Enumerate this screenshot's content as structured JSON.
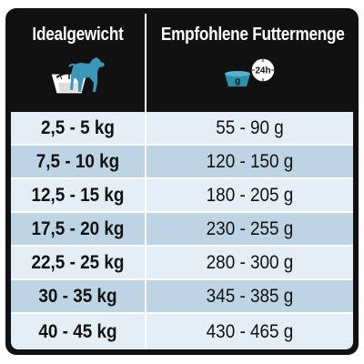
{
  "header": {
    "weight_title": "Idealgewicht",
    "food_title": "Empfohlene Futtermenge",
    "weight_icon": "dog-on-scale-icon",
    "food_icon": "bowl-24h-clock-icon",
    "bowl_label": "g",
    "clock_label": "24h"
  },
  "colors": {
    "header_bg": "#111111",
    "row_light": "#e4eef4",
    "row_dark": "#bcd4e4",
    "accent_blue": "#2b8fae"
  },
  "rows": [
    {
      "weight": "2,5 - 5 kg",
      "amount": "55 - 90 g"
    },
    {
      "weight": "7,5 - 10 kg",
      "amount": "120 - 150 g"
    },
    {
      "weight": "12,5 - 15 kg",
      "amount": "180 - 205 g"
    },
    {
      "weight": "17,5 - 20 kg",
      "amount": "230 - 255 g"
    },
    {
      "weight": "22,5 - 25 kg",
      "amount": "280 - 300 g"
    },
    {
      "weight": "30 - 35 kg",
      "amount": "345 - 385 g"
    },
    {
      "weight": "40 - 45 kg",
      "amount": "430 - 465 g"
    }
  ]
}
